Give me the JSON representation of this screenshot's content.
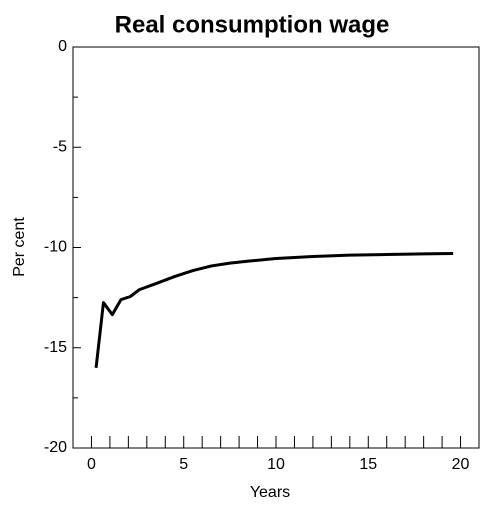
{
  "chart_data": {
    "type": "line",
    "title": "Real consumption wage",
    "x_label": "Years",
    "y_label": "Per cent",
    "x": [
      0.25,
      0.65,
      1.13,
      1.6,
      2.1,
      2.6,
      3.5,
      4.5,
      5.5,
      6.5,
      7.5,
      8.5,
      10,
      12,
      14,
      16,
      18,
      19.6
    ],
    "values": [
      -16.0,
      -12.75,
      -13.35,
      -12.6,
      -12.45,
      -12.1,
      -11.8,
      -11.45,
      -11.15,
      -10.92,
      -10.78,
      -10.68,
      -10.55,
      -10.45,
      -10.38,
      -10.35,
      -10.32,
      -10.3
    ],
    "color": "#000000",
    "xlim": [
      -1,
      21
    ],
    "ylim": [
      -20,
      0
    ],
    "xticks": [
      0,
      5,
      10,
      15,
      20
    ],
    "yticks": [
      -20,
      -15,
      -10,
      -5,
      0
    ],
    "x_minor_ticks": [
      1,
      2,
      3,
      4,
      6,
      7,
      8,
      9,
      11,
      12,
      13,
      14,
      16,
      17,
      18,
      19
    ],
    "y_minor_ticks": [
      -17.5,
      -12.5,
      -7.5,
      -2.5
    ],
    "grid": false
  }
}
